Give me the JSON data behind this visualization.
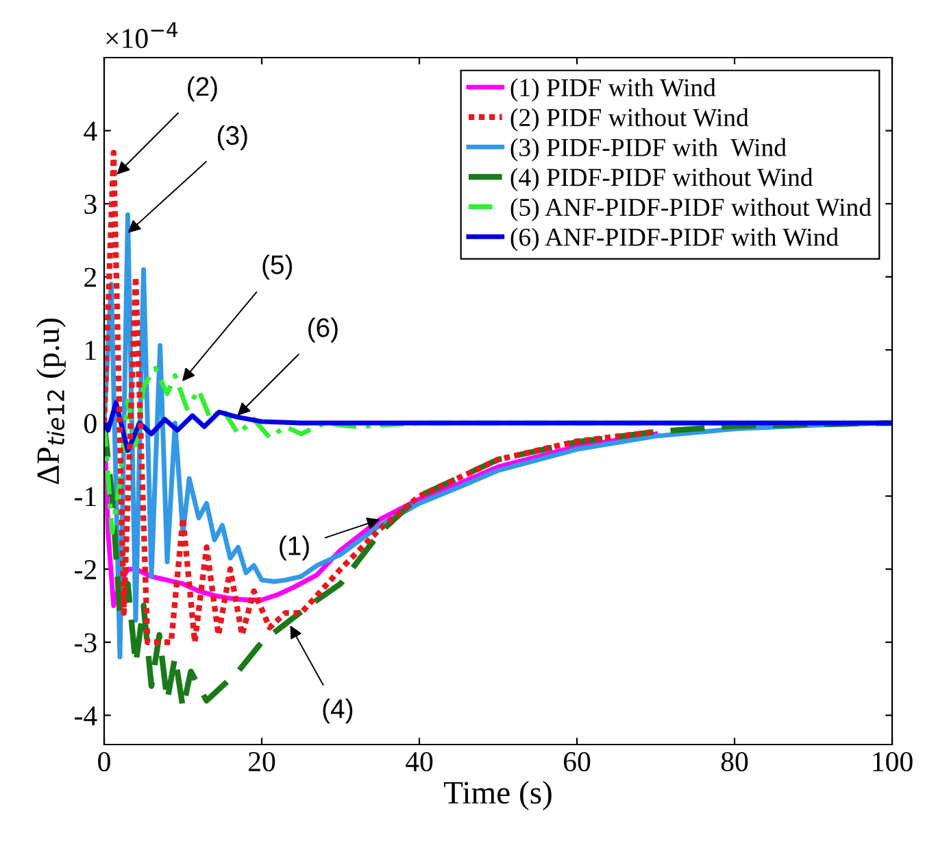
{
  "chart_data": {
    "type": "line",
    "xlabel": "Time (s)",
    "ylabel": "ΔP$_{tie12}$ (p.u)",
    "xlim": [
      0,
      100
    ],
    "xticks": [
      0,
      20,
      40,
      60,
      80,
      100
    ],
    "ylim": [
      -4.4,
      5
    ],
    "yticks": [
      -4,
      -3,
      -2,
      -1,
      0,
      1,
      2,
      3,
      4
    ],
    "grid": false,
    "legend": "top right",
    "marker": "none",
    "annotations": [
      "×10$^{−4}$",
      {
        "text": "(1)",
        "x": 35,
        "y": -1.32
      },
      {
        "text": "(2)",
        "x": 1.6,
        "y": 3.4
      },
      {
        "text": "(3)",
        "x": 3,
        "y": 2.6
      },
      {
        "text": "(4)",
        "x": 23.6,
        "y": -2.77
      },
      {
        "text": "(5)",
        "x": 9.9,
        "y": 0.57
      },
      {
        "text": "(6)",
        "x": 16.9,
        "y": 0.1
      }
    ],
    "series": [
      {
        "name": "(1) PIDF with Wind",
        "color": "#ff00ff",
        "line_style": "solid",
        "x": [
          0,
          0.5,
          1.2,
          2,
          3,
          4,
          5,
          6,
          8,
          10,
          12,
          14,
          16,
          18,
          20,
          22,
          24,
          27,
          30,
          35,
          40,
          45,
          50,
          60,
          70
        ],
        "values": [
          0,
          -1.5,
          -2.5,
          -2.2,
          -2.0,
          -2.0,
          -2.05,
          -2.1,
          -2.15,
          -2.2,
          -2.3,
          -2.36,
          -2.4,
          -2.42,
          -2.42,
          -2.35,
          -2.25,
          -2.08,
          -1.74,
          -1.32,
          -1.04,
          -0.83,
          -0.6,
          -0.32,
          -0.15
        ]
      },
      {
        "name": "(2) PIDF without Wind",
        "color": "#e8191e",
        "line_style": "dotted",
        "x": [
          0,
          1.2,
          2.5,
          4,
          5.5,
          8.5,
          10,
          11.5,
          13,
          14.5,
          16,
          17.5,
          19,
          21,
          23,
          25,
          30,
          35,
          40,
          50,
          60,
          70
        ],
        "values": [
          0,
          3.7,
          -2.6,
          2.0,
          -3.0,
          -3.0,
          -1.3,
          -3.0,
          -1.7,
          -2.9,
          -2.0,
          -2.9,
          -2.3,
          -2.8,
          -2.6,
          -2.6,
          -2.0,
          -1.45,
          -1.0,
          -0.5,
          -0.25,
          -0.12
        ]
      },
      {
        "name": "(3) PIDF-PIDF with  Wind",
        "color": "#3399e6",
        "line_style": "solid",
        "x": [
          0,
          0.9,
          2,
          3,
          4,
          5,
          6,
          7.1,
          8,
          9,
          10,
          10.8,
          12,
          13,
          14,
          15,
          16,
          17,
          18,
          19,
          20,
          21.6,
          23,
          25,
          27,
          30,
          35,
          40,
          45,
          50,
          60,
          70,
          80,
          90,
          100
        ],
        "values": [
          0,
          1.9,
          -3.2,
          2.85,
          -2.7,
          2.1,
          -2.1,
          1.06,
          -1.9,
          0,
          -1.5,
          -0.76,
          -1.3,
          -1.1,
          -1.6,
          -1.4,
          -1.85,
          -1.7,
          -2.05,
          -1.95,
          -2.15,
          -2.17,
          -2.15,
          -2.1,
          -1.95,
          -1.8,
          -1.4,
          -1.1,
          -0.88,
          -0.65,
          -0.36,
          -0.18,
          -0.08,
          -0.03,
          0
        ]
      },
      {
        "name": "(4) PIDF-PIDF without Wind",
        "color": "#1a7a1a",
        "line_style": "dashed",
        "x": [
          0,
          1,
          2,
          3,
          4,
          5,
          6,
          7,
          8,
          9,
          10,
          11,
          13,
          15,
          17,
          20,
          23,
          26,
          30,
          35,
          40,
          50,
          60,
          70,
          80,
          100
        ],
        "values": [
          0,
          -1.0,
          -2.6,
          -2.2,
          -3.3,
          -2.5,
          -3.6,
          -2.9,
          -3.8,
          -3.2,
          -3.9,
          -3.4,
          -3.8,
          -3.6,
          -3.4,
          -3.0,
          -2.75,
          -2.5,
          -2.2,
          -1.5,
          -1.0,
          -0.5,
          -0.26,
          -0.12,
          -0.04,
          0
        ]
      },
      {
        "name": "(5) ANF-PIDF-PIDF without Wind",
        "color": "#33ee33",
        "line_style": "dashdot",
        "x": [
          0,
          1,
          2,
          3,
          4,
          5,
          6.5,
          8,
          9,
          10.5,
          12,
          13.5,
          15,
          17,
          19,
          21,
          23,
          25,
          28,
          32,
          40,
          100
        ],
        "values": [
          0,
          -1.5,
          -0.8,
          0.3,
          -0.3,
          0.5,
          0.75,
          0.4,
          0.65,
          0.2,
          0.45,
          0.05,
          0.2,
          -0.15,
          0.05,
          -0.2,
          -0.05,
          -0.15,
          0,
          -0.05,
          0,
          0
        ]
      },
      {
        "name": "(6) ANF-PIDF-PIDF with Wind",
        "color": "#0000e6",
        "line_style": "solid",
        "x": [
          0,
          0.5,
          1.5,
          3,
          4.5,
          6,
          7.7,
          9.3,
          11.2,
          12.7,
          14.6,
          16.9,
          20,
          25,
          100
        ],
        "values": [
          0,
          -0.1,
          0.28,
          -0.38,
          0,
          -0.15,
          0.05,
          -0.1,
          0.1,
          -0.05,
          0.15,
          0.08,
          0.02,
          0,
          0
        ]
      }
    ]
  }
}
